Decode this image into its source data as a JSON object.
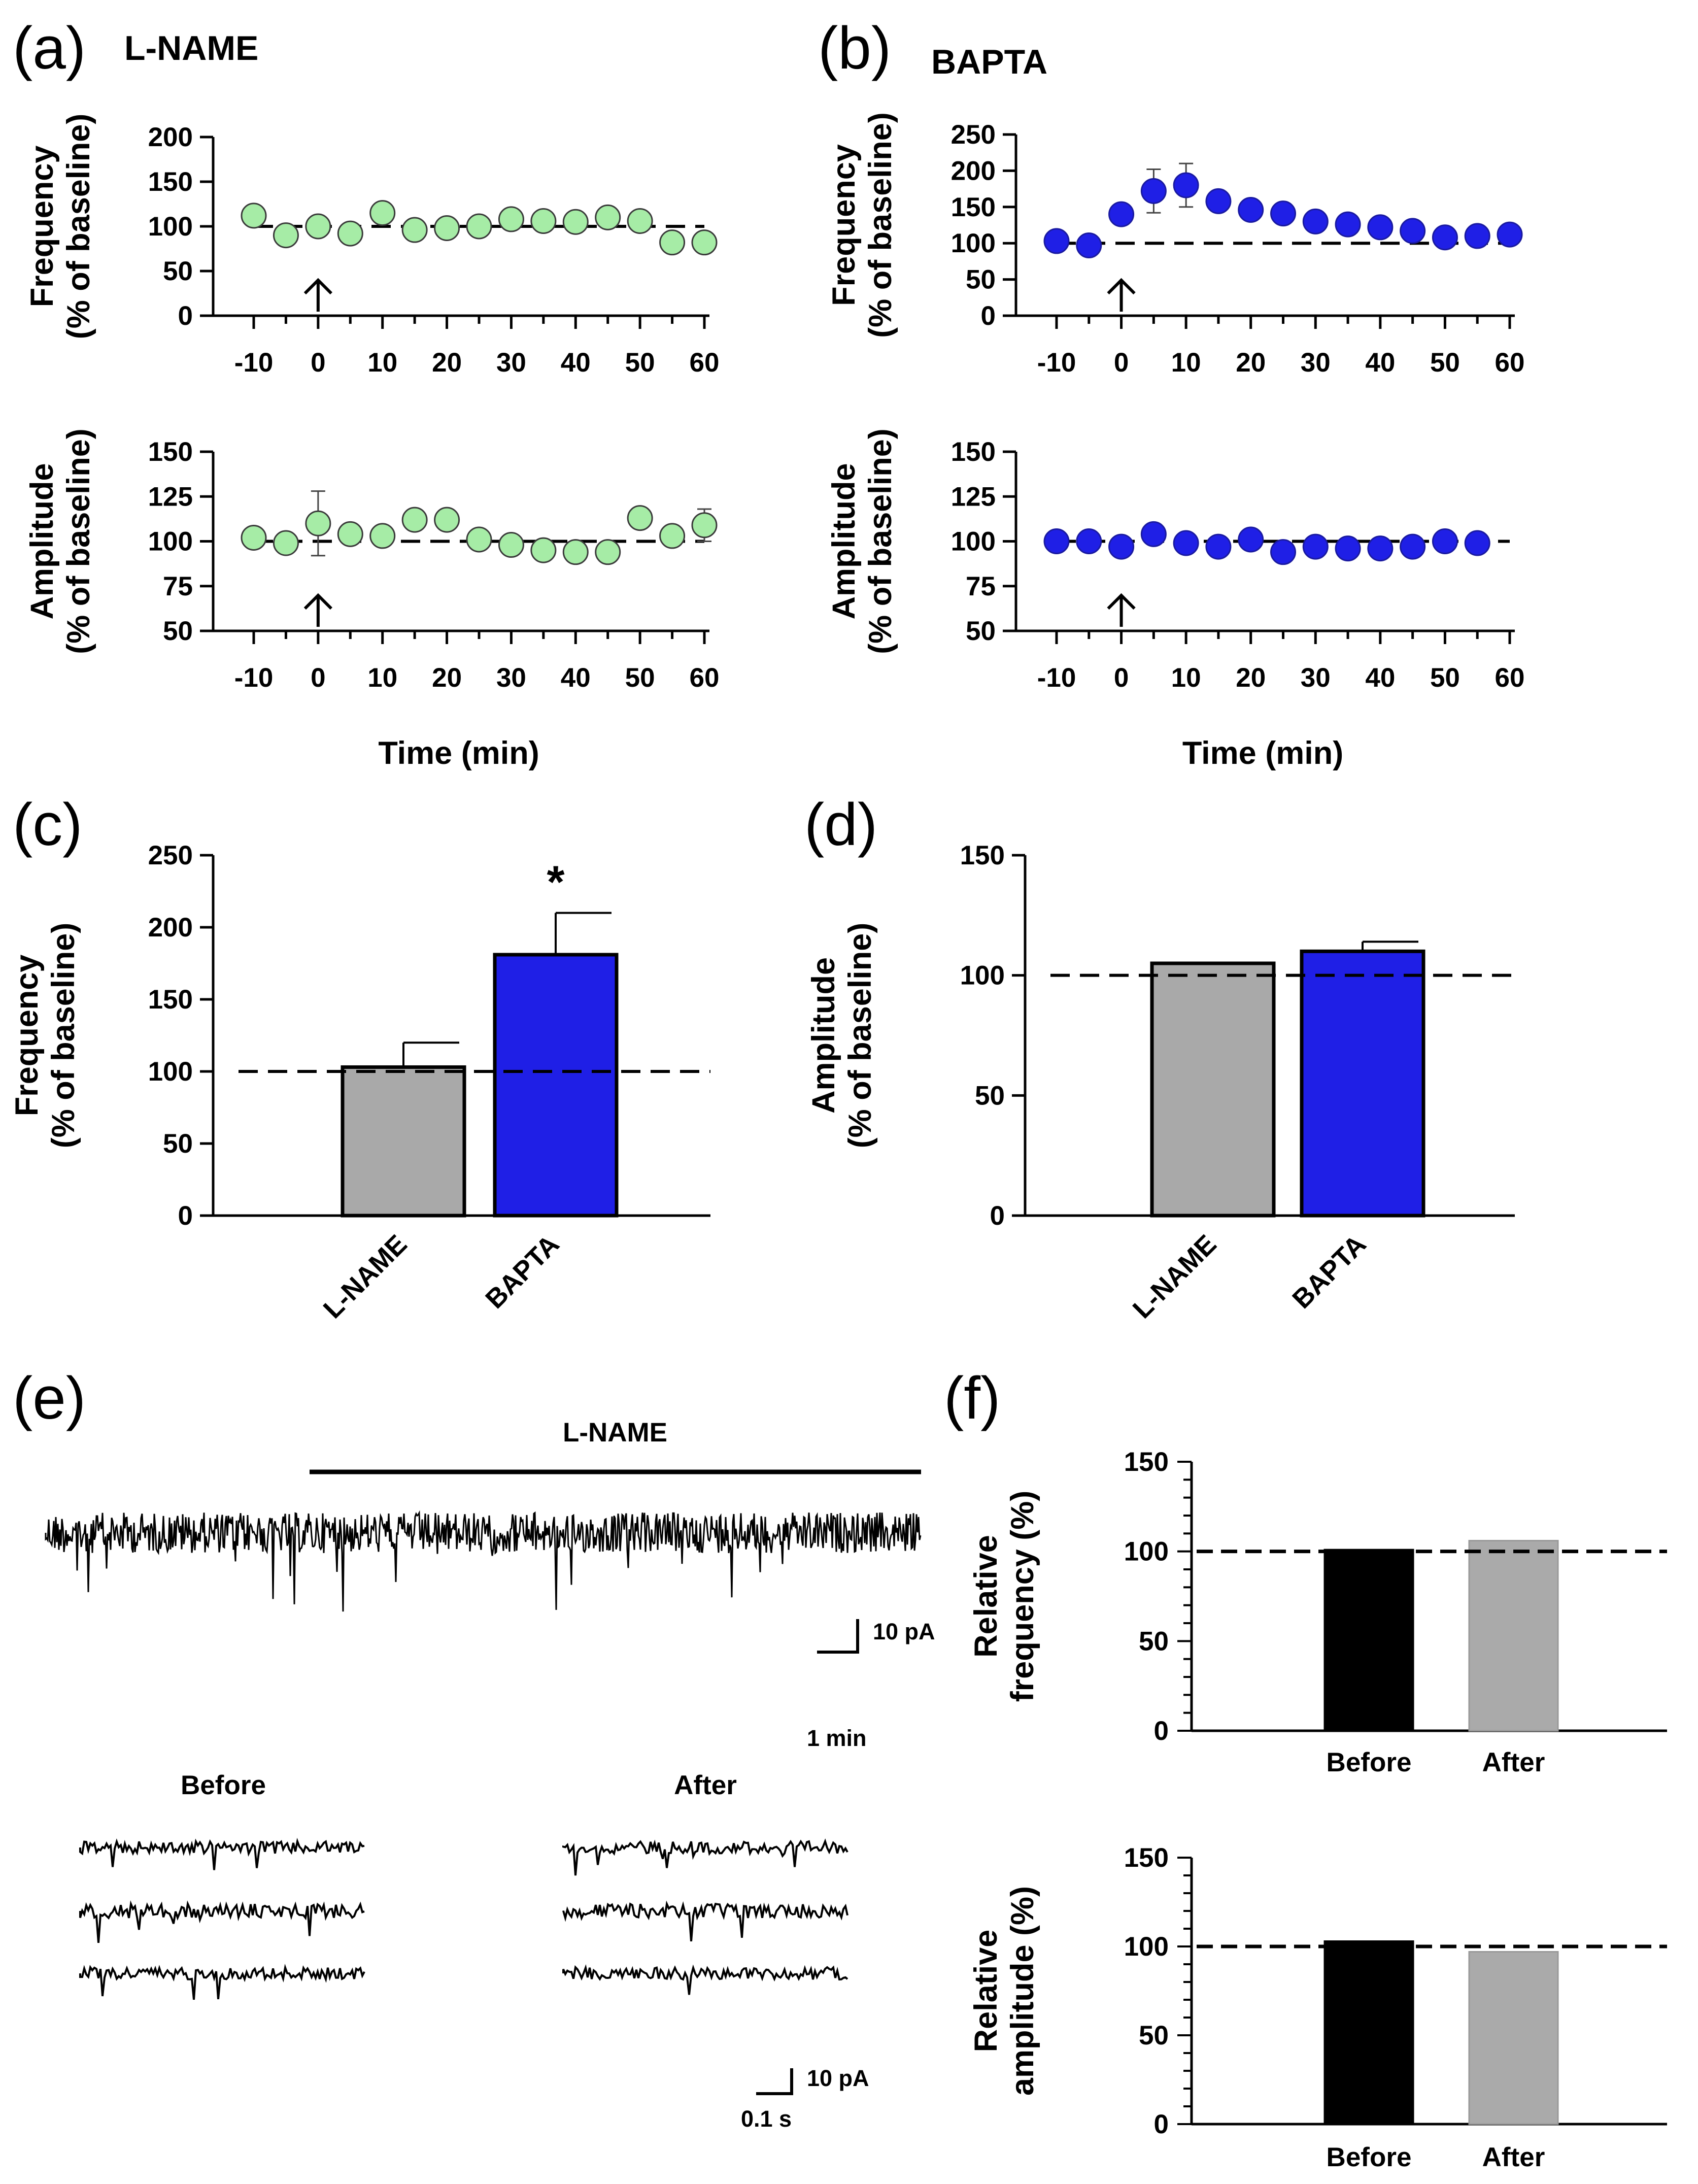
{
  "panels": {
    "a": {
      "label": "(a)",
      "title": "L-NAME"
    },
    "b": {
      "label": "(b)",
      "title": "BAPTA"
    },
    "c": {
      "label": "(c)"
    },
    "d": {
      "label": "(d)"
    },
    "e": {
      "label": "(e)"
    },
    "f": {
      "label": "(f)"
    }
  },
  "colors": {
    "lname_marker": "#a6eca6",
    "bapta": "#1f1fe6",
    "bar_gray": "#a9a9a9",
    "bar_black": "#000000",
    "bar_lightgray": "#aaaaaa"
  },
  "trace": {
    "drug_label": "L-NAME",
    "scale_main_y": "10 pA",
    "scale_main_x": "1 min",
    "before_label": "Before",
    "after_label": "After",
    "scale_small_y": "10 pA",
    "scale_small_x": "0.1 s"
  },
  "chart_data": [
    {
      "id": "a-frequency",
      "type": "scatter",
      "xlabel": "",
      "ylabel": "Frequency\n(% of baseline)",
      "xlim": [
        -10,
        60
      ],
      "ylim": [
        0,
        200
      ],
      "xticks": [
        "-10",
        "0",
        "10",
        "20",
        "30",
        "40",
        "50",
        "60"
      ],
      "yticks": [
        "0",
        "50",
        "100",
        "150",
        "200"
      ],
      "x": [
        -10,
        -5,
        0,
        5,
        10,
        15,
        20,
        25,
        30,
        35,
        40,
        45,
        50,
        55,
        60
      ],
      "y": [
        112,
        90,
        100,
        92,
        115,
        96,
        98,
        100,
        108,
        106,
        105,
        110,
        106,
        82,
        82
      ],
      "err": [
        0,
        0,
        0,
        0,
        0,
        0,
        0,
        0,
        0,
        0,
        0,
        0,
        0,
        0,
        0
      ],
      "baseline": 100,
      "arrow_at": 0,
      "color": "#a6eca6"
    },
    {
      "id": "a-amplitude",
      "type": "scatter",
      "xlabel": "Time (min)",
      "ylabel": "Amplitude\n(% of baseline)",
      "xlim": [
        -10,
        60
      ],
      "ylim": [
        50,
        150
      ],
      "xticks": [
        "-10",
        "0",
        "10",
        "20",
        "30",
        "40",
        "50",
        "60"
      ],
      "yticks": [
        "50",
        "75",
        "100",
        "125",
        "150"
      ],
      "x": [
        -10,
        -5,
        0,
        5,
        10,
        15,
        20,
        25,
        30,
        35,
        40,
        45,
        50,
        55,
        60
      ],
      "y": [
        102,
        99,
        110,
        104,
        103,
        112,
        112,
        101,
        98,
        95,
        94,
        94,
        113,
        103,
        109
      ],
      "err": [
        0,
        0,
        18,
        0,
        0,
        0,
        0,
        0,
        0,
        0,
        0,
        0,
        0,
        0,
        9
      ],
      "baseline": 100,
      "arrow_at": 0,
      "color": "#a6eca6"
    },
    {
      "id": "b-frequency",
      "type": "scatter",
      "xlabel": "",
      "ylabel": "Frequency\n(% of baseline)",
      "xlim": [
        -10,
        60
      ],
      "ylim": [
        0,
        250
      ],
      "xticks": [
        "-10",
        "0",
        "10",
        "20",
        "30",
        "40",
        "50",
        "60"
      ],
      "yticks": [
        "0",
        "50",
        "100",
        "150",
        "200",
        "250"
      ],
      "x": [
        -10,
        -5,
        0,
        5,
        10,
        15,
        20,
        25,
        30,
        35,
        40,
        45,
        50,
        55,
        60
      ],
      "y": [
        103,
        97,
        140,
        172,
        180,
        158,
        146,
        141,
        130,
        126,
        122,
        117,
        108,
        110,
        112
      ],
      "err": [
        0,
        0,
        0,
        30,
        30,
        0,
        0,
        0,
        0,
        0,
        0,
        0,
        0,
        0,
        0
      ],
      "baseline": 100,
      "arrow_at": 0,
      "color": "#1f1fe6"
    },
    {
      "id": "b-amplitude",
      "type": "scatter",
      "xlabel": "Time (min)",
      "ylabel": "Amplitude\n(% of baseline)",
      "xlim": [
        -10,
        60
      ],
      "ylim": [
        50,
        150
      ],
      "xticks": [
        "-10",
        "0",
        "10",
        "20",
        "30",
        "40",
        "50",
        "60"
      ],
      "yticks": [
        "50",
        "75",
        "100",
        "125",
        "150"
      ],
      "x": [
        -10,
        -5,
        0,
        5,
        10,
        15,
        20,
        25,
        30,
        35,
        40,
        45,
        50,
        55
      ],
      "y": [
        100,
        100,
        97,
        104,
        99,
        97,
        101,
        94,
        97,
        96,
        96,
        97,
        100,
        99
      ],
      "err": [
        0,
        0,
        0,
        0,
        0,
        0,
        0,
        0,
        0,
        0,
        0,
        0,
        0,
        0
      ],
      "baseline": 100,
      "arrow_at": 0,
      "color": "#1f1fe6"
    },
    {
      "id": "c",
      "type": "bar",
      "ylabel": "Frequency\n(% of baseline)",
      "ylim": [
        0,
        250
      ],
      "yticks": [
        "0",
        "50",
        "100",
        "150",
        "200",
        "250"
      ],
      "categories": [
        "L-NAME",
        "BAPTA"
      ],
      "values": [
        103,
        181
      ],
      "err": [
        17,
        29
      ],
      "colors": [
        "#a9a9a9",
        "#1f1fe6"
      ],
      "baseline": 100,
      "significance": [
        "",
        "*"
      ]
    },
    {
      "id": "d",
      "type": "bar",
      "ylabel": "Amplitude\n(% of baseline)",
      "ylim": [
        0,
        150
      ],
      "yticks": [
        "0",
        "50",
        "100",
        "150"
      ],
      "categories": [
        "L-NAME",
        "BAPTA"
      ],
      "values": [
        105,
        110
      ],
      "err": [
        0,
        4
      ],
      "colors": [
        "#a9a9a9",
        "#1f1fe6"
      ],
      "baseline": 100,
      "significance": [
        "",
        ""
      ]
    },
    {
      "id": "f-frequency",
      "type": "bar",
      "ylabel": "Relative\nfrequency (%)",
      "ylim": [
        0,
        150
      ],
      "yticks": [
        "0",
        "50",
        "100",
        "150"
      ],
      "categories": [
        "Before",
        "After"
      ],
      "values": [
        101,
        106
      ],
      "colors": [
        "#000000",
        "#aaaaaa"
      ],
      "baseline": 100
    },
    {
      "id": "f-amplitude",
      "type": "bar",
      "ylabel": "Relative\namplitude (%)",
      "ylim": [
        0,
        150
      ],
      "yticks": [
        "0",
        "50",
        "100",
        "150"
      ],
      "categories": [
        "Before",
        "After"
      ],
      "values": [
        103,
        97
      ],
      "colors": [
        "#000000",
        "#aaaaaa"
      ],
      "baseline": 100
    }
  ]
}
